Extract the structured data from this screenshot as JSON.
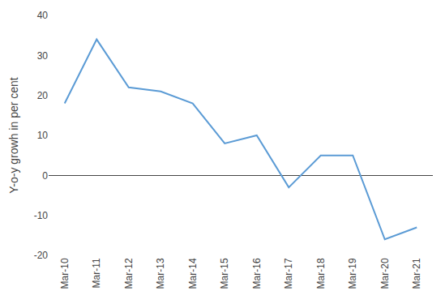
{
  "chart_data": {
    "type": "line",
    "categories": [
      "Mar-10",
      "Mar-11",
      "Mar-12",
      "Mar-13",
      "Mar-14",
      "Mar-15",
      "Mar-16",
      "Mar-17",
      "Mar-18",
      "Mar-19",
      "Mar-20",
      "Mar-21"
    ],
    "values": [
      18,
      34,
      22,
      21,
      18,
      8,
      10,
      -3,
      5,
      5,
      -16,
      -13
    ],
    "color": "#5B9BD5",
    "ylabel": "Y-o-y growh in per cent",
    "ylim": [
      -20,
      40
    ],
    "yticks": [
      -20,
      -10,
      0,
      10,
      20,
      30,
      40
    ],
    "grid": false
  }
}
